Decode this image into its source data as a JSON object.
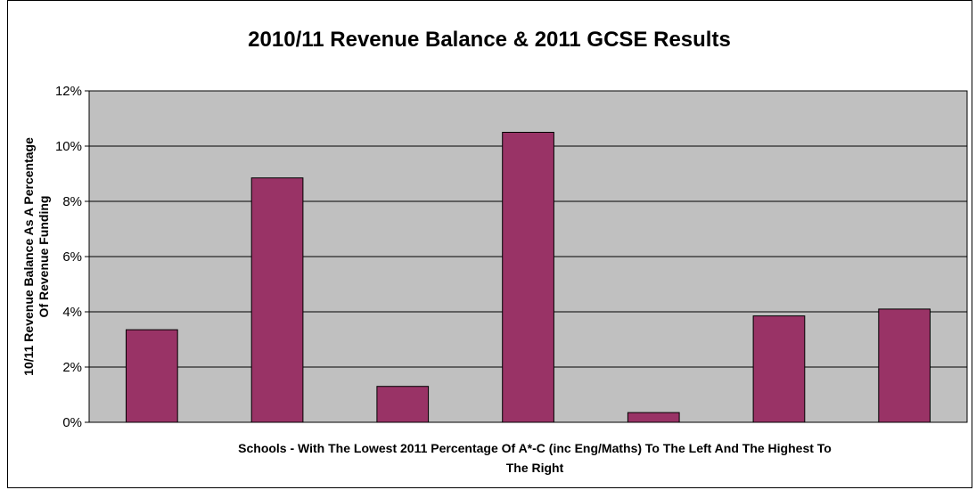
{
  "chart_data": {
    "type": "bar",
    "title": "2010/11 Revenue Balance & 2011 GCSE Results",
    "ylabel_line1": "10/11 Revenue Balance As A Percentage",
    "ylabel_line2": "Of Revenue Funding",
    "xlabel_line1": "Schools - With The Lowest 2011 Percentage Of A*-C (inc Eng/Maths) To The Left And The Highest To",
    "xlabel_line2": "The Right",
    "values": [
      3.35,
      8.85,
      1.3,
      10.5,
      0.35,
      3.85,
      4.1
    ],
    "ylim": [
      0,
      12
    ],
    "yticks": [
      0,
      2,
      4,
      6,
      8,
      10,
      12
    ],
    "ytick_labels": [
      "0%",
      "2%",
      "4%",
      "6%",
      "8%",
      "10%",
      "12%"
    ],
    "grid": true,
    "legend": "none",
    "colors": {
      "bar_fill": "#993366",
      "bar_stroke": "#000000",
      "plot_bg": "#c0c0c0",
      "grid": "#000000"
    }
  }
}
